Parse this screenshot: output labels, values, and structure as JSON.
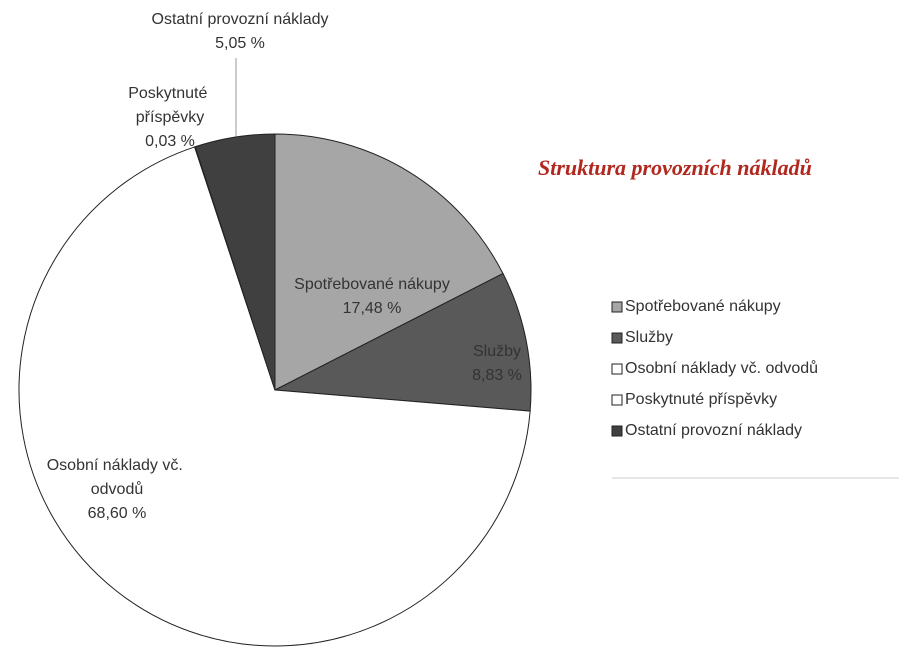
{
  "chart_data": {
    "type": "pie",
    "title": "Struktura provozních nákladů",
    "categories": [
      "Spotřebované nákupy",
      "Služby",
      "Osobní náklady vč. odvodů",
      "Poskytnuté příspěvky",
      "Ostatní provozní náklady"
    ],
    "values": [
      17.48,
      8.83,
      68.6,
      0.03,
      5.05
    ],
    "value_labels": [
      "17,48 %",
      "8,83 %",
      "68,60 %",
      "0,03 %",
      "5,05 %"
    ],
    "colors": [
      "#a6a6a6",
      "#595959",
      "#ffffff",
      "#ffffff",
      "#404040"
    ],
    "legend": "right"
  }
}
